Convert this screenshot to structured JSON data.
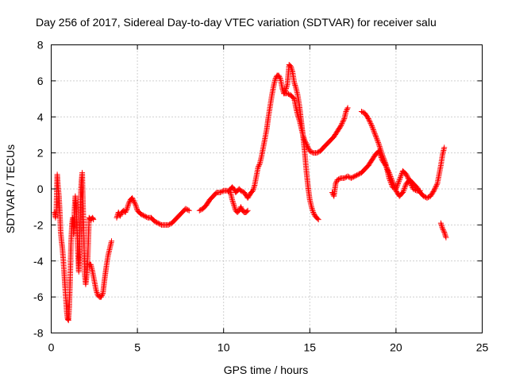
{
  "chart_data": {
    "type": "scatter",
    "title": "Day 256 of 2017, Sidereal Day-to-day VTEC variation (SDTVAR) for receiver salu",
    "xlabel": "GPS time / hours",
    "ylabel": "SDTVAR / TECUs",
    "xlim": [
      0,
      25
    ],
    "ylim": [
      -8,
      8
    ],
    "xticks": [
      0,
      5,
      10,
      15,
      20,
      25
    ],
    "yticks": [
      -8,
      -6,
      -4,
      -2,
      0,
      2,
      4,
      6,
      8
    ],
    "grid": true,
    "marker": "+",
    "color": "#ff0000",
    "series": [
      {
        "segments": [
          [
            [
              0.2,
              -1.3
            ],
            [
              0.25,
              -1.6
            ],
            [
              0.3,
              -1.2
            ],
            [
              0.35,
              0.8
            ],
            [
              0.4,
              0.1
            ],
            [
              0.45,
              -0.4
            ],
            [
              0.5,
              -1.3
            ],
            [
              0.55,
              -2.4
            ],
            [
              0.6,
              -2.9
            ],
            [
              0.65,
              -3.3
            ],
            [
              0.7,
              -3.9
            ],
            [
              0.75,
              -4.6
            ],
            [
              0.8,
              -5.4
            ],
            [
              0.85,
              -6.1
            ],
            [
              0.9,
              -6.8
            ],
            [
              0.95,
              -7.2
            ],
            [
              1.0,
              -7.3
            ],
            [
              1.05,
              -6.5
            ],
            [
              1.1,
              -5.0
            ],
            [
              1.15,
              -3.0
            ],
            [
              1.2,
              -2.0
            ],
            [
              1.25,
              -1.6
            ],
            [
              1.3,
              -2.5
            ],
            [
              1.35,
              -1.2
            ],
            [
              1.4,
              -0.4
            ],
            [
              1.45,
              -1.0
            ],
            [
              1.5,
              -2.4
            ],
            [
              1.55,
              -3.6
            ],
            [
              1.6,
              -4.6
            ],
            [
              1.65,
              -3.2
            ],
            [
              1.7,
              -0.6
            ],
            [
              1.75,
              0.4
            ],
            [
              1.8,
              0.9
            ],
            [
              1.85,
              -1.0
            ],
            [
              1.9,
              -3.0
            ],
            [
              1.95,
              -4.8
            ],
            [
              2.0,
              -5.3
            ],
            [
              2.05,
              -4.9
            ],
            [
              2.1,
              -4.4
            ],
            [
              2.2,
              -1.6
            ],
            [
              2.3,
              -1.7
            ],
            [
              2.4,
              -1.6
            ],
            [
              2.45,
              -1.7
            ]
          ],
          [
            [
              2.2,
              -4.2
            ],
            [
              2.3,
              -4.2
            ],
            [
              2.4,
              -4.6
            ],
            [
              2.5,
              -5.1
            ],
            [
              2.6,
              -5.6
            ],
            [
              2.7,
              -5.9
            ],
            [
              2.8,
              -6.0
            ],
            [
              2.9,
              -6.0
            ],
            [
              3.0,
              -5.8
            ],
            [
              3.1,
              -5.0
            ],
            [
              3.2,
              -4.3
            ],
            [
              3.3,
              -3.7
            ],
            [
              3.4,
              -3.3
            ],
            [
              3.5,
              -2.9
            ]
          ],
          [
            [
              3.8,
              -1.6
            ],
            [
              3.9,
              -1.3
            ],
            [
              4.0,
              -1.5
            ],
            [
              4.1,
              -1.3
            ],
            [
              4.2,
              -1.2
            ],
            [
              4.3,
              -1.3
            ],
            [
              4.4,
              -1.1
            ],
            [
              4.5,
              -0.8
            ],
            [
              4.6,
              -0.6
            ],
            [
              4.7,
              -0.5
            ],
            [
              4.8,
              -0.7
            ],
            [
              4.9,
              -0.9
            ],
            [
              5.0,
              -1.2
            ],
            [
              5.2,
              -1.4
            ],
            [
              5.4,
              -1.5
            ],
            [
              5.6,
              -1.6
            ],
            [
              5.8,
              -1.6
            ],
            [
              6.0,
              -1.8
            ],
            [
              6.2,
              -1.9
            ],
            [
              6.4,
              -2.0
            ],
            [
              6.6,
              -2.0
            ],
            [
              6.8,
              -2.0
            ],
            [
              7.0,
              -1.9
            ],
            [
              7.2,
              -1.7
            ],
            [
              7.4,
              -1.5
            ],
            [
              7.6,
              -1.3
            ],
            [
              7.8,
              -1.1
            ],
            [
              8.0,
              -1.2
            ]
          ],
          [
            [
              8.6,
              -1.2
            ],
            [
              8.8,
              -1.1
            ],
            [
              9.0,
              -0.9
            ],
            [
              9.2,
              -0.6
            ],
            [
              9.4,
              -0.4
            ],
            [
              9.6,
              -0.2
            ],
            [
              9.8,
              -0.2
            ],
            [
              10.0,
              -0.1
            ],
            [
              10.2,
              -0.1
            ],
            [
              10.4,
              -0.2
            ],
            [
              10.5,
              -0.6
            ],
            [
              10.6,
              -0.9
            ],
            [
              10.7,
              -1.2
            ],
            [
              10.8,
              -1.3
            ],
            [
              10.9,
              -1.2
            ],
            [
              11.0,
              -1.0
            ],
            [
              11.1,
              -1.2
            ],
            [
              11.2,
              -1.3
            ],
            [
              11.3,
              -1.3
            ],
            [
              11.4,
              -1.2
            ]
          ],
          [
            [
              10.3,
              -0.1
            ],
            [
              10.5,
              0.1
            ],
            [
              10.6,
              0.0
            ],
            [
              10.7,
              -0.2
            ],
            [
              10.8,
              -0.1
            ],
            [
              10.9,
              0.0
            ],
            [
              11.0,
              -0.1
            ],
            [
              11.2,
              -0.2
            ],
            [
              11.4,
              -0.5
            ],
            [
              11.6,
              -0.2
            ],
            [
              11.7,
              -0.1
            ],
            [
              11.8,
              0.2
            ],
            [
              11.9,
              0.7
            ],
            [
              12.0,
              1.2
            ],
            [
              12.1,
              1.4
            ],
            [
              12.2,
              1.8
            ],
            [
              12.3,
              2.3
            ],
            [
              12.4,
              2.8
            ],
            [
              12.5,
              3.3
            ],
            [
              12.6,
              4.0
            ],
            [
              12.7,
              4.6
            ],
            [
              12.8,
              5.2
            ],
            [
              12.9,
              5.7
            ],
            [
              13.0,
              6.1
            ],
            [
              13.1,
              6.3
            ],
            [
              13.2,
              6.3
            ],
            [
              13.3,
              6.1
            ],
            [
              13.4,
              5.6
            ],
            [
              13.5,
              5.3
            ],
            [
              13.6,
              5.5
            ],
            [
              13.7,
              5.8
            ],
            [
              13.8,
              6.9
            ],
            [
              13.9,
              6.8
            ],
            [
              14.0,
              6.5
            ],
            [
              14.1,
              5.9
            ],
            [
              14.2,
              5.6
            ],
            [
              14.3,
              5.2
            ],
            [
              14.4,
              4.6
            ],
            [
              14.5,
              3.8
            ],
            [
              14.6,
              3.0
            ],
            [
              14.7,
              2.1
            ],
            [
              14.8,
              1.0
            ],
            [
              14.9,
              0.1
            ],
            [
              15.0,
              -0.6
            ],
            [
              15.1,
              -1.0
            ],
            [
              15.2,
              -1.3
            ],
            [
              15.3,
              -1.5
            ],
            [
              15.4,
              -1.6
            ],
            [
              15.5,
              -1.7
            ]
          ],
          [
            [
              13.5,
              5.3
            ],
            [
              13.7,
              5.3
            ],
            [
              13.9,
              5.2
            ],
            [
              14.1,
              5.0
            ],
            [
              14.2,
              4.5
            ],
            [
              14.3,
              4.1
            ],
            [
              14.4,
              3.8
            ],
            [
              14.5,
              3.4
            ],
            [
              14.6,
              3.0
            ],
            [
              14.7,
              2.7
            ],
            [
              14.8,
              2.5
            ],
            [
              14.9,
              2.3
            ],
            [
              15.0,
              2.1
            ],
            [
              15.2,
              2.0
            ],
            [
              15.4,
              2.0
            ],
            [
              15.6,
              2.1
            ],
            [
              15.8,
              2.3
            ],
            [
              16.0,
              2.5
            ],
            [
              16.2,
              2.7
            ],
            [
              16.4,
              2.9
            ],
            [
              16.6,
              3.2
            ],
            [
              16.8,
              3.5
            ],
            [
              17.0,
              3.9
            ],
            [
              17.1,
              4.3
            ],
            [
              17.2,
              4.5
            ]
          ],
          [
            [
              16.3,
              -0.2
            ],
            [
              16.4,
              -0.4
            ],
            [
              16.5,
              0.3
            ],
            [
              16.6,
              0.5
            ],
            [
              16.8,
              0.6
            ],
            [
              17.0,
              0.6
            ],
            [
              17.2,
              0.7
            ],
            [
              17.4,
              0.6
            ],
            [
              17.6,
              0.7
            ],
            [
              17.8,
              0.8
            ],
            [
              18.0,
              0.9
            ],
            [
              18.2,
              1.1
            ],
            [
              18.4,
              1.3
            ],
            [
              18.6,
              1.6
            ],
            [
              18.8,
              1.9
            ],
            [
              19.0,
              2.1
            ],
            [
              19.2,
              1.6
            ],
            [
              19.4,
              1.3
            ],
            [
              19.6,
              0.9
            ],
            [
              19.8,
              0.4
            ],
            [
              20.0,
              -0.1
            ],
            [
              20.2,
              -0.4
            ],
            [
              20.4,
              -0.2
            ],
            [
              20.6,
              0.3
            ],
            [
              20.8,
              0.5
            ],
            [
              21.0,
              0.3
            ],
            [
              21.2,
              0.1
            ],
            [
              21.4,
              -0.2
            ],
            [
              21.6,
              -0.4
            ],
            [
              21.8,
              -0.5
            ],
            [
              22.0,
              -0.4
            ],
            [
              22.2,
              -0.1
            ],
            [
              22.4,
              0.3
            ],
            [
              22.5,
              0.8
            ],
            [
              22.6,
              1.3
            ],
            [
              22.7,
              1.9
            ],
            [
              22.8,
              2.3
            ]
          ],
          [
            [
              18.0,
              4.3
            ],
            [
              18.2,
              4.2
            ],
            [
              18.4,
              3.9
            ],
            [
              18.6,
              3.5
            ],
            [
              18.8,
              3.0
            ],
            [
              19.0,
              2.5
            ],
            [
              19.2,
              1.9
            ],
            [
              19.4,
              1.4
            ],
            [
              19.6,
              0.6
            ],
            [
              19.8,
              0.1
            ],
            [
              20.0,
              0.0
            ],
            [
              20.2,
              0.5
            ],
            [
              20.4,
              1.0
            ],
            [
              20.6,
              0.8
            ],
            [
              20.8,
              0.4
            ],
            [
              21.0,
              0.0
            ],
            [
              21.2,
              -0.1
            ],
            [
              21.4,
              -0.1
            ]
          ],
          [
            [
              22.6,
              -1.9
            ],
            [
              22.7,
              -2.2
            ],
            [
              22.8,
              -2.4
            ],
            [
              22.9,
              -2.7
            ]
          ]
        ]
      }
    ]
  }
}
